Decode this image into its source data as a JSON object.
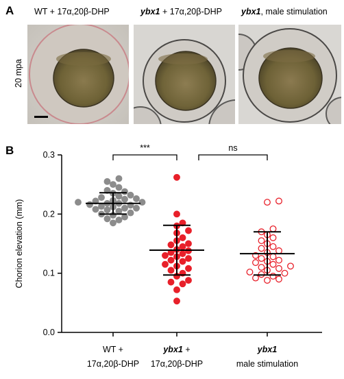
{
  "panel_a": {
    "letter": "A",
    "row_label": "20 mpa",
    "titles": [
      {
        "pre": "",
        "em": "",
        "post": "WT + 17α,20β-DHP"
      },
      {
        "pre": "",
        "em": "ybx1",
        "post": " + 17α,20β-DHP"
      },
      {
        "pre": "",
        "em": "ybx1",
        "post": ", male stimulation"
      }
    ]
  },
  "panel_b": {
    "letter": "B",
    "significance": [
      "***",
      "ns"
    ]
  },
  "colors": {
    "wt": "#8c8c8c",
    "dhp": "#e8202a",
    "male": "#e8202a",
    "bar": "#000000"
  },
  "chart_data": {
    "type": "scatter",
    "title": "",
    "ylabel": "Chorion elevation (mm)",
    "ylim": [
      0.0,
      0.3
    ],
    "yticks": [
      "0.0",
      "0.1",
      "0.2",
      "0.3"
    ],
    "categories": [
      {
        "line1": "WT +",
        "line2": "17α,20β-DHP",
        "italic": false
      },
      {
        "line1": "ybx1 +",
        "line2": "17α,20β-DHP",
        "italic": true
      },
      {
        "line1": "ybx1",
        "line2": "male stimulation",
        "italic": true
      }
    ],
    "series": [
      {
        "style": "filled-gray",
        "mean": 0.218,
        "sd_upper": 0.236,
        "sd_lower": 0.2,
        "values": [
          0.185,
          0.19,
          0.192,
          0.195,
          0.198,
          0.2,
          0.202,
          0.205,
          0.207,
          0.208,
          0.21,
          0.21,
          0.212,
          0.213,
          0.215,
          0.216,
          0.218,
          0.218,
          0.22,
          0.22,
          0.222,
          0.223,
          0.225,
          0.226,
          0.228,
          0.23,
          0.232,
          0.235,
          0.238,
          0.24,
          0.245,
          0.25,
          0.255,
          0.26
        ]
      },
      {
        "style": "filled-red",
        "mean": 0.139,
        "sd_upper": 0.181,
        "sd_lower": 0.097,
        "values": [
          0.053,
          0.072,
          0.082,
          0.085,
          0.088,
          0.095,
          0.1,
          0.105,
          0.108,
          0.112,
          0.115,
          0.12,
          0.122,
          0.125,
          0.128,
          0.13,
          0.133,
          0.135,
          0.138,
          0.14,
          0.145,
          0.148,
          0.15,
          0.155,
          0.16,
          0.168,
          0.172,
          0.18,
          0.185,
          0.2,
          0.262
        ]
      },
      {
        "style": "open-red",
        "mean": 0.133,
        "sd_upper": 0.17,
        "sd_lower": 0.097,
        "values": [
          0.088,
          0.09,
          0.092,
          0.095,
          0.098,
          0.1,
          0.102,
          0.105,
          0.108,
          0.11,
          0.112,
          0.115,
          0.118,
          0.12,
          0.122,
          0.125,
          0.128,
          0.13,
          0.135,
          0.138,
          0.142,
          0.145,
          0.15,
          0.155,
          0.16,
          0.165,
          0.17,
          0.175,
          0.22,
          0.222
        ]
      }
    ]
  }
}
